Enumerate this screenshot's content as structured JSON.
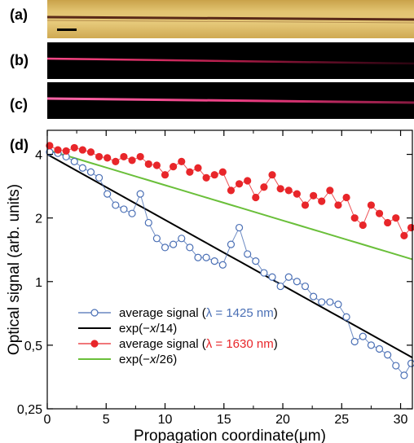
{
  "panels": {
    "a": "(a)",
    "b": "(b)",
    "c": "(c)",
    "d": "(d)"
  },
  "colors": {
    "blue": "#4a6fb5",
    "red": "#e8262a",
    "black": "#000000",
    "green": "#6abf3a",
    "gold": "#e2c471",
    "waveguide_glow": "#ff3f7a"
  },
  "chart_data": {
    "type": "scatter",
    "xlabel": "Propagation coordinate(μm)",
    "ylabel": "Optical signal (arb. units)",
    "xlim": [
      0,
      31
    ],
    "ylim": [
      0.25,
      5.2
    ],
    "yscale": "log",
    "xticks": [
      0,
      5,
      10,
      15,
      20,
      25,
      30
    ],
    "xtick_labels": [
      "0",
      "5",
      "10",
      "15",
      "20",
      "25",
      "30"
    ],
    "yticks": [
      0.25,
      0.5,
      1,
      2,
      4
    ],
    "ytick_labels": [
      "0,25",
      "0,5",
      "1",
      "2",
      "4"
    ],
    "legend_position": "lower-left",
    "series": [
      {
        "name": "average signal (λ = 1425 nm)",
        "legend_parts": [
          "average signal (",
          "λ = 1425 nm",
          ")"
        ],
        "marker": "open-circle",
        "color": "#4a6fb5",
        "x": [
          0.2,
          0.9,
          1.6,
          2.3,
          3.0,
          3.7,
          4.4,
          5.1,
          5.8,
          6.5,
          7.2,
          7.9,
          8.6,
          9.3,
          10.0,
          10.7,
          11.4,
          12.1,
          12.8,
          13.5,
          14.2,
          14.9,
          15.6,
          16.3,
          17.0,
          17.7,
          18.4,
          19.1,
          19.8,
          20.5,
          21.2,
          21.9,
          22.6,
          23.3,
          24.0,
          24.7,
          25.4,
          26.1,
          26.8,
          27.5,
          28.2,
          28.9,
          29.6,
          30.3,
          30.9
        ],
        "y": [
          4.1,
          4.05,
          3.9,
          3.7,
          3.45,
          3.3,
          3.1,
          2.6,
          2.3,
          2.2,
          2.1,
          2.6,
          1.9,
          1.6,
          1.45,
          1.5,
          1.6,
          1.45,
          1.3,
          1.3,
          1.25,
          1.2,
          1.5,
          1.8,
          1.35,
          1.25,
          1.1,
          1.05,
          0.95,
          1.05,
          1.0,
          0.95,
          0.85,
          0.8,
          0.8,
          0.78,
          0.68,
          0.52,
          0.55,
          0.5,
          0.48,
          0.45,
          0.4,
          0.36,
          0.41
        ]
      },
      {
        "name": "exp(−x/14)",
        "legend_parts": [
          "exp(−",
          "x",
          "/14)"
        ],
        "type": "line",
        "color": "#000000",
        "amplitude": 4.0,
        "decay_length": 14,
        "x_range": [
          0,
          31
        ]
      },
      {
        "name": "average signal (λ = 1630 nm)",
        "legend_parts": [
          "average signal (",
          "λ = 1630 nm",
          ")"
        ],
        "marker": "filled-circle",
        "color": "#e8262a",
        "x": [
          0.2,
          0.9,
          1.6,
          2.3,
          3.0,
          3.7,
          4.4,
          5.1,
          5.8,
          6.5,
          7.2,
          7.9,
          8.6,
          9.3,
          10.0,
          10.7,
          11.4,
          12.1,
          12.8,
          13.5,
          14.2,
          14.9,
          15.6,
          16.3,
          17.0,
          17.7,
          18.4,
          19.1,
          19.8,
          20.5,
          21.2,
          21.9,
          22.6,
          23.3,
          24.0,
          24.7,
          25.4,
          26.1,
          26.8,
          27.5,
          28.2,
          28.9,
          29.6,
          30.3,
          30.9
        ],
        "y": [
          4.4,
          4.2,
          4.15,
          4.3,
          4.2,
          4.1,
          3.9,
          3.85,
          3.7,
          3.9,
          3.75,
          3.9,
          3.6,
          3.55,
          3.2,
          3.5,
          3.7,
          3.3,
          3.45,
          3.1,
          3.2,
          3.3,
          2.7,
          2.9,
          3.0,
          2.5,
          2.8,
          3.2,
          2.75,
          2.7,
          2.6,
          2.3,
          2.55,
          2.4,
          2.7,
          2.3,
          2.5,
          2.0,
          1.85,
          2.3,
          2.1,
          1.9,
          2.0,
          1.65,
          1.8
        ]
      },
      {
        "name": "exp(−x/26)",
        "legend_parts": [
          "exp(−",
          "x",
          "/26)"
        ],
        "type": "line",
        "color": "#6abf3a",
        "amplitude": 4.2,
        "decay_length": 26,
        "x_range": [
          0,
          31
        ]
      }
    ]
  }
}
